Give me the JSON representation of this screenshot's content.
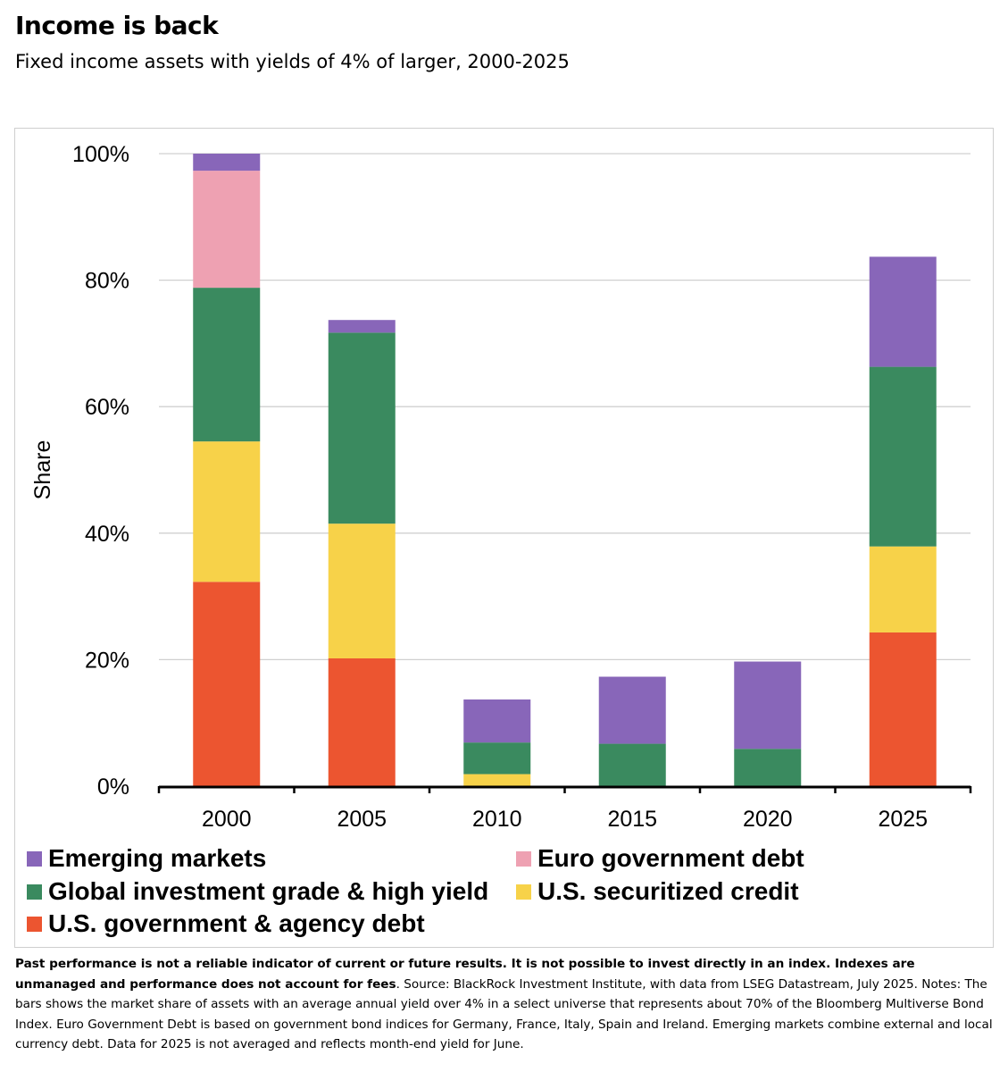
{
  "title": "Income is back",
  "subtitle": "Fixed income assets with yields of 4% of larger, 2000-2025",
  "chart_data": {
    "type": "bar",
    "stacked": true,
    "categories": [
      "2000",
      "2005",
      "2010",
      "2015",
      "2020",
      "2025"
    ],
    "ylabel": "Share",
    "ylim": [
      0,
      100
    ],
    "yticks": [
      0,
      20,
      40,
      60,
      80,
      100
    ],
    "ytick_labels": [
      "0%",
      "20%",
      "40%",
      "60%",
      "80%",
      "100%"
    ],
    "grid": true,
    "legend_position": "bottom",
    "series": [
      {
        "name": "U.S. government & agency debt",
        "color": "#EC5530",
        "values": [
          32.3,
          20.2,
          0,
          0,
          0,
          24.3
        ]
      },
      {
        "name": "U.S. securitized credit",
        "color": "#F7D249",
        "values": [
          22.2,
          21.3,
          1.9,
          0,
          0,
          13.6
        ]
      },
      {
        "name": "Global investment grade & high yield",
        "color": "#3A8A5F",
        "values": [
          24.3,
          30.2,
          5.0,
          6.7,
          5.9,
          28.4
        ]
      },
      {
        "name": "Euro government debt",
        "color": "#EEA1B2",
        "values": [
          18.5,
          0,
          0,
          0,
          0,
          0
        ]
      },
      {
        "name": "Emerging markets",
        "color": "#8866B9",
        "values": [
          2.7,
          2.0,
          6.8,
          10.6,
          13.8,
          17.4
        ]
      }
    ]
  },
  "legend": [
    {
      "label": "Emerging markets",
      "color": "#8866B9"
    },
    {
      "label": "Euro government debt",
      "color": "#EEA1B2"
    },
    {
      "label": "Global investment grade & high yield",
      "color": "#3A8A5F"
    },
    {
      "label": "U.S. securitized credit",
      "color": "#F7D249"
    },
    {
      "label": "U.S. government & agency debt",
      "color": "#EC5530"
    }
  ],
  "footnote": {
    "bold": "Past performance is not a reliable indicator of current or future results. It is not possible to invest directly in an index. Indexes are unmanaged and performance does not account for fees",
    "text": ". Source: BlackRock Investment Institute, with data from LSEG Datastream, July 2025. Notes: The bars shows the market share of assets with an average annual yield over 4% in a select universe that represents about 70% of the Bloomberg Multiverse Bond Index. Euro Government Debt is based on government bond indices for Germany, France, Italy, Spain and Ireland. Emerging markets combine external and local currency debt. Data for 2025 is not averaged and reflects month-end yield for June."
  }
}
